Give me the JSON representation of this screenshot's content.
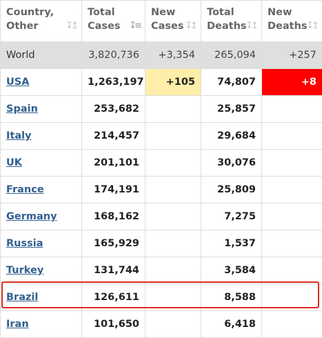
{
  "table": {
    "headers": [
      {
        "line1": "Country,",
        "line2": "Other",
        "sort": "↧↥",
        "sort_icon": "sort-both-icon"
      },
      {
        "line1": "Total",
        "line2": "Cases",
        "sort": "↧≡",
        "sort_icon": "sort-desc-icon"
      },
      {
        "line1": "New",
        "line2": "Cases",
        "sort": "↧↥",
        "sort_icon": "sort-both-icon"
      },
      {
        "line1": "Total",
        "line2": "Deaths",
        "sort": "↧↥",
        "sort_icon": "sort-both-icon"
      },
      {
        "line1": "New",
        "line2": "Deaths",
        "sort": "↧↥",
        "sort_icon": "sort-both-icon"
      }
    ],
    "world": {
      "country": "World",
      "total_cases": "3,820,736",
      "new_cases": "+3,354",
      "total_deaths": "265,094",
      "new_deaths": "+257"
    },
    "rows": [
      {
        "country": "USA",
        "total_cases": "1,263,197",
        "new_cases": "+105",
        "total_deaths": "74,807",
        "new_deaths": "+8"
      },
      {
        "country": "Spain",
        "total_cases": "253,682",
        "new_cases": "",
        "total_deaths": "25,857",
        "new_deaths": ""
      },
      {
        "country": "Italy",
        "total_cases": "214,457",
        "new_cases": "",
        "total_deaths": "29,684",
        "new_deaths": ""
      },
      {
        "country": "UK",
        "total_cases": "201,101",
        "new_cases": "",
        "total_deaths": "30,076",
        "new_deaths": ""
      },
      {
        "country": "France",
        "total_cases": "174,191",
        "new_cases": "",
        "total_deaths": "25,809",
        "new_deaths": ""
      },
      {
        "country": "Germany",
        "total_cases": "168,162",
        "new_cases": "",
        "total_deaths": "7,275",
        "new_deaths": ""
      },
      {
        "country": "Russia",
        "total_cases": "165,929",
        "new_cases": "",
        "total_deaths": "1,537",
        "new_deaths": ""
      },
      {
        "country": "Turkey",
        "total_cases": "131,744",
        "new_cases": "",
        "total_deaths": "3,584",
        "new_deaths": ""
      },
      {
        "country": "Brazil",
        "total_cases": "126,611",
        "new_cases": "",
        "total_deaths": "8,588",
        "new_deaths": ""
      },
      {
        "country": "Iran",
        "total_cases": "101,650",
        "new_cases": "",
        "total_deaths": "6,418",
        "new_deaths": ""
      }
    ]
  },
  "colors": {
    "link": "#32608f",
    "world_row_bg": "#dfdfdf",
    "new_cases_highlight": "#ffeeaa",
    "new_deaths_highlight": "#ff0000",
    "selection_box": "#e02a20"
  }
}
